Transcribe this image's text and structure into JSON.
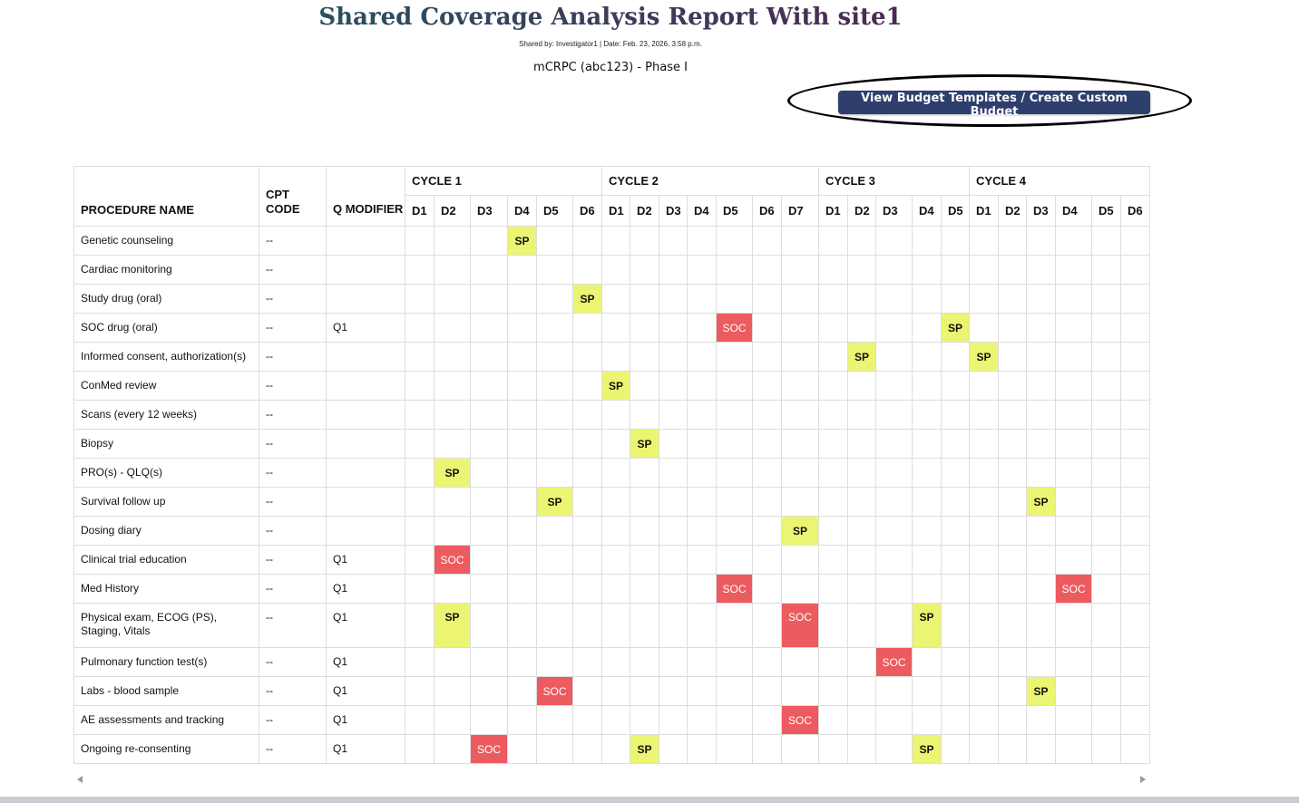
{
  "header": {
    "title": "Shared Coverage Analysis Report With site1",
    "shared_info": "Shared by: Investigator1 | Date: Feb. 23, 2026, 3:58 p.m.",
    "study": "mCRPC (abc123) - Phase I",
    "budget_button": "View Budget Templates / Create Custom Budget"
  },
  "colors": {
    "sp": "#ebf571",
    "soc": "#ec5b5f",
    "button": "#2e3f6e"
  },
  "table": {
    "col_procedure": "PROCEDURE NAME",
    "col_cpt": "CPT CODE",
    "col_q": "Q MODIFIER",
    "cycles": [
      {
        "label": "CYCLE 1",
        "days": [
          "D1",
          "D2",
          "D3",
          "D4",
          "D5",
          "D6"
        ]
      },
      {
        "label": "CYCLE 2",
        "days": [
          "D1",
          "D2",
          "D3",
          "D4",
          "D5",
          "D6",
          "D7"
        ]
      },
      {
        "label": "CYCLE 3",
        "days": [
          "D1",
          "D2",
          "D3",
          "D4",
          "D5"
        ]
      },
      {
        "label": "CYCLE 4",
        "days": [
          "D1",
          "D2",
          "D3",
          "D4",
          "D5",
          "D6"
        ]
      }
    ],
    "rows": [
      {
        "name": "Genetic counseling",
        "cpt": "--",
        "q": "",
        "marks": {
          "3": "SP"
        }
      },
      {
        "name": "Cardiac monitoring",
        "cpt": "--",
        "q": "",
        "marks": {}
      },
      {
        "name": "Study drug (oral)",
        "cpt": "--",
        "q": "",
        "marks": {
          "5": "SP"
        }
      },
      {
        "name": "SOC drug (oral)",
        "cpt": "--",
        "q": "Q1",
        "marks": {
          "10": "SOC",
          "17": "SP"
        }
      },
      {
        "name": "Informed consent, authorization(s)",
        "cpt": "--",
        "q": "",
        "marks": {
          "14": "SP",
          "18": "SP"
        }
      },
      {
        "name": "ConMed review",
        "cpt": "--",
        "q": "",
        "marks": {
          "6": "SP"
        }
      },
      {
        "name": "Scans (every 12 weeks)",
        "cpt": "--",
        "q": "",
        "marks": {}
      },
      {
        "name": "Biopsy",
        "cpt": "--",
        "q": "",
        "marks": {
          "7": "SP"
        }
      },
      {
        "name": "PRO(s) - QLQ(s)",
        "cpt": "--",
        "q": "",
        "marks": {
          "1": "SP"
        }
      },
      {
        "name": "Survival follow up",
        "cpt": "--",
        "q": "",
        "marks": {
          "4": "SP",
          "20": "SP"
        }
      },
      {
        "name": "Dosing diary",
        "cpt": "--",
        "q": "",
        "marks": {
          "12": "SP"
        }
      },
      {
        "name": "Clinical trial education",
        "cpt": "--",
        "q": "Q1",
        "marks": {
          "1": "SOC"
        }
      },
      {
        "name": "Med History",
        "cpt": "--",
        "q": "Q1",
        "marks": {
          "10": "SOC",
          "21": "SOC"
        }
      },
      {
        "name": "Physical exam, ECOG (PS), Staging, Vitals",
        "cpt": "--",
        "q": "Q1",
        "marks": {
          "1": "SP",
          "12": "SOC",
          "16": "SP"
        }
      },
      {
        "name": "Pulmonary function test(s)",
        "cpt": "--",
        "q": "Q1",
        "marks": {
          "15": "SOC"
        }
      },
      {
        "name": "Labs - blood sample",
        "cpt": "--",
        "q": "Q1",
        "marks": {
          "4": "SOC",
          "20": "SP"
        }
      },
      {
        "name": "AE assessments and tracking",
        "cpt": "--",
        "q": "Q1",
        "marks": {
          "12": "SOC"
        }
      },
      {
        "name": "Ongoing re-consenting",
        "cpt": "--",
        "q": "Q1",
        "marks": {
          "2": "SOC",
          "7": "SP",
          "16": "SP"
        }
      }
    ]
  }
}
